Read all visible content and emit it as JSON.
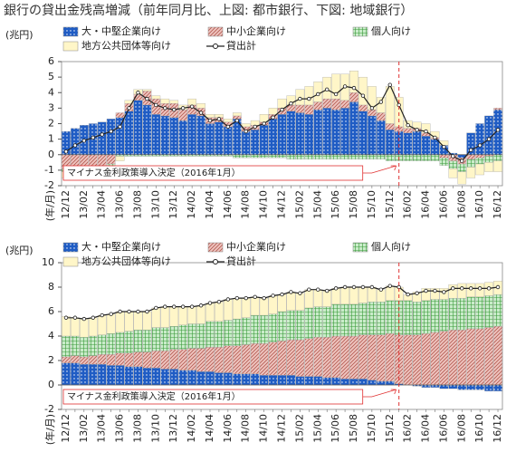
{
  "title": "銀行の貸出金残高増減（前年同月比、上図: 都市銀行、下図: 地域銀行）",
  "chart_data": [
    {
      "type": "bar",
      "stacked": true,
      "ylabel": "(兆円)",
      "xlabel": "(年/月)",
      "ylim": [
        -2,
        6
      ],
      "yticks": [
        -2,
        -1,
        0,
        1,
        2,
        3,
        4,
        5,
        6
      ],
      "categories": [
        "12/12",
        null,
        "13/02",
        null,
        "13/04",
        null,
        "13/06",
        null,
        "13/08",
        null,
        "13/10",
        null,
        "13/12",
        null,
        "14/02",
        null,
        "14/04",
        null,
        "14/06",
        null,
        "14/08",
        null,
        "14/10",
        null,
        "14/12",
        null,
        "15/02",
        null,
        "15/04",
        null,
        "15/06",
        null,
        "15/08",
        null,
        "15/10",
        null,
        "15/12",
        null,
        "16/02",
        null,
        "16/04",
        null,
        "16/06",
        null,
        "16/08",
        null,
        "16/10",
        null,
        "16/12"
      ],
      "annotation": {
        "text": "マイナス金利政策導入決定（2016年1月）",
        "x": 37,
        "color": "#e03030"
      },
      "series": [
        {
          "name": "大・中堅企業向け",
          "type": "bar",
          "color": "#1f5cc4",
          "pattern": "dots",
          "pattern_color": "#ffffff",
          "values": [
            1.5,
            1.7,
            1.9,
            2.0,
            2.1,
            2.3,
            2.4,
            2.8,
            3.5,
            3.2,
            2.6,
            2.5,
            2.4,
            2.2,
            2.6,
            2.5,
            2.0,
            2.1,
            1.8,
            2.3,
            1.5,
            1.6,
            1.9,
            2.3,
            2.6,
            2.8,
            2.7,
            2.6,
            2.9,
            3.0,
            2.9,
            3.0,
            3.4,
            2.8,
            2.5,
            2.2,
            1.6,
            1.5,
            1.4,
            1.5,
            1.2,
            1.0,
            0.6,
            0.1,
            -0.2,
            1.4,
            2.0,
            2.5,
            2.9
          ]
        },
        {
          "name": "中小企業向け",
          "type": "bar",
          "color": "#efc4bf",
          "pattern": "hatch",
          "pattern_color": "#b25a50",
          "values": [
            -0.9,
            -0.9,
            -0.8,
            -0.8,
            -0.7,
            -0.6,
            0.3,
            0.5,
            0.4,
            0.9,
            1.0,
            0.8,
            0.9,
            0.7,
            0.6,
            0.5,
            0.4,
            0.3,
            0.3,
            0.2,
            0.3,
            0.3,
            0.2,
            0.3,
            0.4,
            0.4,
            0.5,
            0.6,
            0.5,
            0.6,
            0.7,
            0.5,
            0.6,
            0.4,
            0.4,
            0.5,
            0.4,
            0.3,
            0.3,
            0.2,
            0.2,
            0.1,
            -0.2,
            -0.4,
            -0.4,
            -0.3,
            -0.2,
            -0.1,
            0.1
          ]
        },
        {
          "name": "個人向け",
          "type": "bar",
          "color": "#c9ecc9",
          "pattern": "grid",
          "pattern_color": "#3a9a3a",
          "values": [
            -0.2,
            -0.2,
            -0.2,
            -0.2,
            -0.1,
            -0.1,
            -0.1,
            -0.1,
            -0.1,
            -0.1,
            -0.1,
            -0.1,
            -0.1,
            -0.1,
            -0.1,
            -0.1,
            -0.1,
            -0.1,
            -0.1,
            -0.2,
            -0.2,
            -0.2,
            -0.2,
            -0.2,
            -0.2,
            -0.3,
            -0.3,
            -0.3,
            -0.3,
            -0.3,
            -0.3,
            -0.3,
            -0.3,
            -0.3,
            -0.3,
            -0.3,
            -0.4,
            -0.4,
            -0.4,
            -0.4,
            -0.4,
            -0.4,
            -0.5,
            -0.5,
            -0.5,
            -0.5,
            -0.4,
            -0.4,
            -0.4
          ]
        },
        {
          "name": "地方公共団体等向け",
          "type": "bar",
          "color": "#fff6c8",
          "pattern": "none",
          "pattern_color": "#9a9a7a",
          "values": [
            -0.4,
            -0.5,
            -0.5,
            -0.5,
            -0.6,
            -0.5,
            -0.3,
            0.2,
            0.3,
            0.1,
            0.2,
            0.3,
            0.2,
            0.3,
            0.4,
            0.3,
            0.2,
            0.2,
            0.2,
            0.2,
            0.2,
            0.3,
            0.5,
            0.4,
            0.6,
            0.6,
            1.0,
            1.2,
            1.3,
            1.4,
            1.6,
            1.7,
            1.4,
            1.8,
            1.5,
            1.0,
            2.4,
            1.9,
            0.5,
            0.4,
            0.6,
            0.4,
            0.3,
            -0.6,
            -0.8,
            -0.7,
            -0.7,
            -0.6,
            -0.7
          ]
        },
        {
          "name": "貸出計",
          "type": "line",
          "color": "#222222",
          "values": [
            0.2,
            0.6,
            0.9,
            1.1,
            1.3,
            1.5,
            1.8,
            3.0,
            4.0,
            3.6,
            3.2,
            3.0,
            2.9,
            3.0,
            3.1,
            2.7,
            2.2,
            2.3,
            1.8,
            2.2,
            1.5,
            1.8,
            2.0,
            2.4,
            2.9,
            3.3,
            3.6,
            3.6,
            3.9,
            4.2,
            3.9,
            4.4,
            4.3,
            3.8,
            3.0,
            3.4,
            4.5,
            3.2,
            1.9,
            1.6,
            1.5,
            1.1,
            0.5,
            -0.1,
            -0.4,
            0.3,
            0.6,
            1.0,
            1.6
          ]
        }
      ]
    },
    {
      "type": "bar",
      "stacked": true,
      "ylabel": "(兆円)",
      "xlabel": "(年/月)",
      "ylim": [
        -2,
        10
      ],
      "yticks": [
        -2,
        0,
        2,
        4,
        6,
        8,
        10
      ],
      "categories": [
        "12/12",
        null,
        "13/02",
        null,
        "13/04",
        null,
        "13/06",
        null,
        "13/08",
        null,
        "13/10",
        null,
        "13/12",
        null,
        "14/02",
        null,
        "14/04",
        null,
        "14/06",
        null,
        "14/08",
        null,
        "14/10",
        null,
        "14/12",
        null,
        "15/02",
        null,
        "15/04",
        null,
        "15/06",
        null,
        "15/08",
        null,
        "15/10",
        null,
        "15/12",
        null,
        "16/02",
        null,
        "16/04",
        null,
        "16/06",
        null,
        "16/08",
        null,
        "16/10",
        null,
        "16/12"
      ],
      "annotation": {
        "text": "マイナス金利政策導入決定（2016年1月）",
        "x": 37,
        "color": "#e03030"
      },
      "series": [
        {
          "name": "大・中堅企業向け",
          "type": "bar",
          "color": "#1f5cc4",
          "pattern": "dots",
          "pattern_color": "#ffffff",
          "values": [
            1.8,
            1.8,
            1.7,
            1.7,
            1.7,
            1.6,
            1.6,
            1.5,
            1.5,
            1.4,
            1.4,
            1.3,
            1.3,
            1.2,
            1.2,
            1.1,
            1.1,
            1.0,
            1.0,
            0.9,
            0.9,
            0.9,
            0.8,
            0.8,
            0.8,
            0.8,
            0.7,
            0.7,
            0.7,
            0.6,
            0.6,
            0.5,
            0.5,
            0.5,
            0.4,
            0.3,
            0.3,
            0.1,
            0.0,
            -0.1,
            -0.2,
            -0.2,
            -0.3,
            -0.3,
            -0.4,
            -0.4,
            -0.4,
            -0.5,
            -0.5
          ]
        },
        {
          "name": "中小企業向け",
          "type": "bar",
          "color": "#efc4bf",
          "pattern": "hatch",
          "pattern_color": "#b25a50",
          "values": [
            0.5,
            0.6,
            0.6,
            0.7,
            0.8,
            0.9,
            1.0,
            1.1,
            1.2,
            1.3,
            1.4,
            1.5,
            1.6,
            1.7,
            1.8,
            1.9,
            2.0,
            2.1,
            2.2,
            2.3,
            2.4,
            2.5,
            2.6,
            2.7,
            2.8,
            2.9,
            3.0,
            3.1,
            3.2,
            3.3,
            3.4,
            3.5,
            3.5,
            3.6,
            3.7,
            3.8,
            3.9,
            4.0,
            4.1,
            4.1,
            4.2,
            4.3,
            4.4,
            4.5,
            4.5,
            4.6,
            4.6,
            4.7,
            4.8
          ]
        },
        {
          "name": "個人向け",
          "type": "bar",
          "color": "#c9ecc9",
          "pattern": "grid",
          "pattern_color": "#3a9a3a",
          "values": [
            1.7,
            1.6,
            1.6,
            1.6,
            1.6,
            1.7,
            1.7,
            1.8,
            1.8,
            1.8,
            1.9,
            1.9,
            1.9,
            2.0,
            2.0,
            2.0,
            2.1,
            2.1,
            2.1,
            2.2,
            2.2,
            2.3,
            2.3,
            2.3,
            2.4,
            2.4,
            2.4,
            2.5,
            2.5,
            2.5,
            2.6,
            2.6,
            2.6,
            2.6,
            2.7,
            2.7,
            2.7,
            2.8,
            2.8,
            2.7,
            2.7,
            2.7,
            2.6,
            2.6,
            2.6,
            2.6,
            2.6,
            2.6,
            2.6
          ]
        },
        {
          "name": "地方公共団体等向け",
          "type": "bar",
          "color": "#fff6c8",
          "pattern": "none",
          "pattern_color": "#9a9a7a",
          "values": [
            1.6,
            1.5,
            1.5,
            1.5,
            1.6,
            1.6,
            1.7,
            1.6,
            1.5,
            1.5,
            1.6,
            1.7,
            1.6,
            1.5,
            1.4,
            1.5,
            1.5,
            1.6,
            1.7,
            1.7,
            1.6,
            1.5,
            1.4,
            1.5,
            1.4,
            1.5,
            1.4,
            1.5,
            1.4,
            1.3,
            1.3,
            1.4,
            1.4,
            1.3,
            1.2,
            1.0,
            1.2,
            1.1,
            0.5,
            0.8,
            1.0,
            0.9,
            0.9,
            1.1,
            1.2,
            1.1,
            1.1,
            1.1,
            1.1
          ]
        },
        {
          "name": "貸出計",
          "type": "line",
          "color": "#222222",
          "values": [
            5.5,
            5.5,
            5.4,
            5.5,
            5.7,
            5.8,
            6.0,
            6.0,
            6.0,
            6.0,
            6.3,
            6.4,
            6.4,
            6.4,
            6.4,
            6.5,
            6.7,
            6.8,
            7.0,
            7.1,
            7.1,
            7.2,
            7.1,
            7.3,
            7.4,
            7.6,
            7.5,
            7.8,
            7.8,
            7.7,
            7.9,
            8.0,
            8.0,
            8.0,
            8.0,
            7.8,
            8.1,
            8.0,
            7.4,
            7.5,
            7.7,
            7.7,
            7.6,
            7.9,
            7.9,
            7.9,
            7.9,
            7.9,
            8.0
          ]
        }
      ]
    }
  ]
}
